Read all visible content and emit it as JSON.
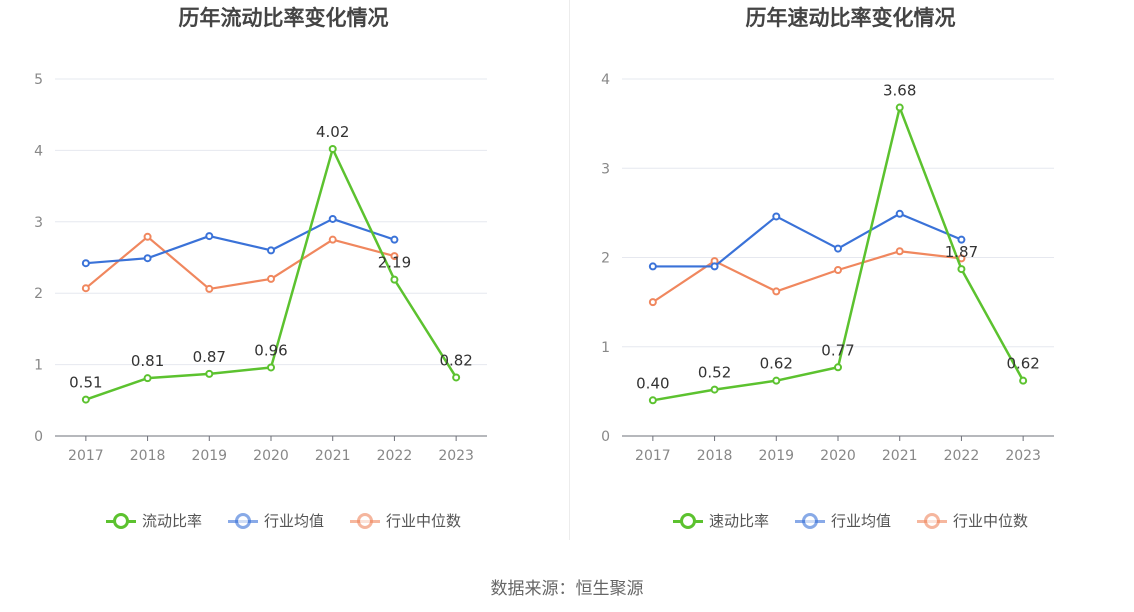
{
  "source_label": "数据来源：恒生聚源",
  "chart_data": [
    {
      "type": "line",
      "title": "历年流动比率变化情况",
      "x": [
        "2017",
        "2018",
        "2019",
        "2020",
        "2021",
        "2022",
        "2023"
      ],
      "ylim": [
        0,
        5
      ],
      "yticks": [
        "0",
        "1",
        "2",
        "3",
        "4",
        "5"
      ],
      "grid": true,
      "legend_position": "bottom",
      "series": [
        {
          "name": "流动比率",
          "color": "#5cc22f",
          "values": [
            0.51,
            0.81,
            0.87,
            0.96,
            4.02,
            2.19,
            0.82
          ],
          "labels": [
            "0.51",
            "0.81",
            "0.87",
            "0.96",
            "4.02",
            "2.19",
            "0.82"
          ]
        },
        {
          "name": "行业均值",
          "color": "#3a72d8",
          "values": [
            2.42,
            2.49,
            2.8,
            2.6,
            3.04,
            2.75,
            null
          ]
        },
        {
          "name": "行业中位数",
          "color": "#f0875e",
          "values": [
            2.07,
            2.79,
            2.06,
            2.2,
            2.75,
            2.52,
            null
          ]
        }
      ]
    },
    {
      "type": "line",
      "title": "历年速动比率变化情况",
      "x": [
        "2017",
        "2018",
        "2019",
        "2020",
        "2021",
        "2022",
        "2023"
      ],
      "ylim": [
        0,
        4
      ],
      "yticks": [
        "0",
        "1",
        "2",
        "3",
        "4"
      ],
      "grid": true,
      "legend_position": "bottom",
      "series": [
        {
          "name": "速动比率",
          "color": "#5cc22f",
          "values": [
            0.4,
            0.52,
            0.62,
            0.77,
            3.68,
            1.87,
            0.62
          ],
          "labels": [
            "0.40",
            "0.52",
            "0.62",
            "0.77",
            "3.68",
            "1.87",
            "0.62"
          ]
        },
        {
          "name": "行业均值",
          "color": "#3a72d8",
          "values": [
            1.9,
            1.9,
            2.46,
            2.1,
            2.49,
            2.2,
            null
          ]
        },
        {
          "name": "行业中位数",
          "color": "#f0875e",
          "values": [
            1.5,
            1.96,
            1.62,
            1.86,
            2.07,
            1.99,
            null
          ]
        }
      ]
    }
  ]
}
